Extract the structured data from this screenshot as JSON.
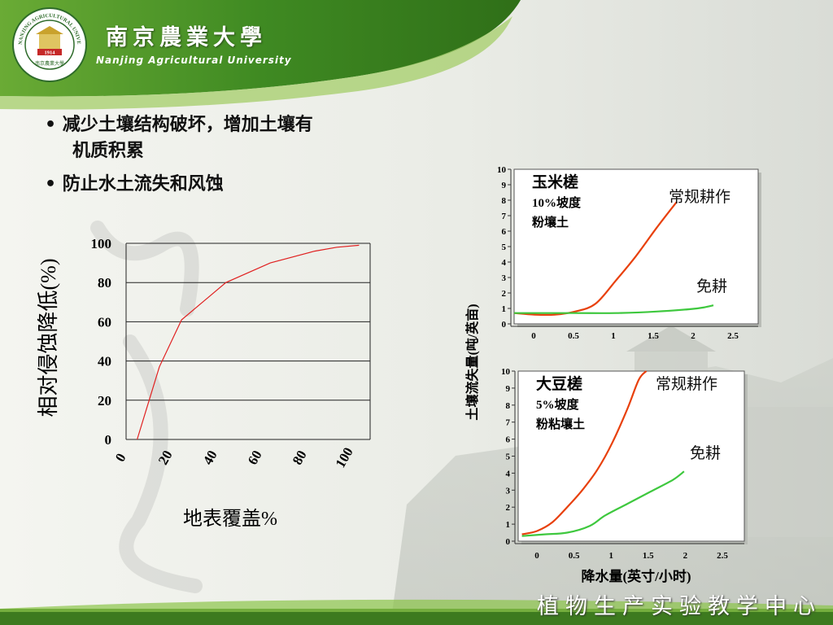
{
  "header": {
    "university_cn": "南京農業大學",
    "university_en": "Nanjing Agricultural University",
    "logo_text": "NANJING AGRICULTURAL UNIVERSITY",
    "logo_year": "1914",
    "logo_motto": "南京農業大學"
  },
  "bullets": [
    {
      "line1": "• 减少土壤结构破坏，增加土壤有",
      "line2": "机质积累"
    },
    {
      "line1": "• 防止水土流失和风蚀",
      "line2": ""
    }
  ],
  "footer": {
    "text": "植物生产实验教学中心"
  },
  "colors": {
    "green_dark": "#3d7a1f",
    "green_light": "#8cc44a",
    "red_line": "#e8400c",
    "green_line": "#3ec83e",
    "left_line": "#e02020"
  },
  "chart_data": [
    {
      "type": "line",
      "title": "",
      "xlabel": "地表覆盖%",
      "ylabel": "相对侵蚀降低(%)",
      "x_ticks": [
        "0",
        "20",
        "40",
        "60",
        "80",
        "100"
      ],
      "y_ticks": [
        "0",
        "20",
        "40",
        "60",
        "80",
        "100"
      ],
      "xlim": [
        0,
        110
      ],
      "ylim": [
        0,
        100
      ],
      "grid": true,
      "series": [
        {
          "name": "",
          "x": [
            5,
            15,
            25,
            45,
            65,
            85,
            95,
            105
          ],
          "y": [
            0,
            37,
            61,
            80,
            90,
            96,
            98,
            99
          ]
        }
      ]
    },
    {
      "type": "line",
      "title": "玉米槎",
      "subtitle": [
        "10%坡度",
        "粉壤土"
      ],
      "xlabel": "",
      "ylabel": "",
      "x_ticks": [
        "0",
        "0.5",
        "1",
        "1.5",
        "2",
        "2.5"
      ],
      "y_ticks": [
        "0",
        "1",
        "2",
        "3",
        "4",
        "5",
        "6",
        "7",
        "8",
        "9",
        "10"
      ],
      "xlim": [
        -0.25,
        2.75
      ],
      "ylim": [
        0,
        10
      ],
      "series": [
        {
          "name": "常规耕作",
          "x": [
            -0.25,
            0,
            0.25,
            0.5,
            0.75,
            1.0,
            1.25,
            1.5,
            1.75
          ],
          "y": [
            0.7,
            0.6,
            0.6,
            0.8,
            1.3,
            2.8,
            4.4,
            6.2,
            7.9
          ]
        },
        {
          "name": "免耕",
          "x": [
            -0.25,
            0,
            0.5,
            1.0,
            1.5,
            2.0,
            2.2
          ],
          "y": [
            0.7,
            0.7,
            0.7,
            0.7,
            0.8,
            1.0,
            1.2
          ]
        }
      ]
    },
    {
      "type": "line",
      "title": "大豆槎",
      "subtitle": [
        "5%坡度",
        "粉粘壤土"
      ],
      "xlabel": "降水量(英寸/小时)",
      "ylabel": "",
      "x_ticks": [
        "0",
        "0.5",
        "1",
        "1.5",
        "2",
        "2.5"
      ],
      "y_ticks": [
        "0",
        "1",
        "2",
        "3",
        "4",
        "5",
        "6",
        "7",
        "8",
        "9",
        "10"
      ],
      "xlim": [
        -0.15,
        2.85
      ],
      "ylim": [
        0,
        10
      ],
      "series": [
        {
          "name": "常规耕作",
          "x": [
            -0.1,
            0.1,
            0.3,
            0.5,
            0.7,
            0.9,
            1.1,
            1.3,
            1.45,
            1.55
          ],
          "y": [
            0.4,
            0.6,
            1.1,
            2.0,
            3.0,
            4.2,
            5.8,
            7.8,
            9.5,
            10.0
          ]
        },
        {
          "name": "免耕",
          "x": [
            -0.1,
            0.2,
            0.5,
            0.8,
            1.0,
            1.3,
            1.6,
            1.9,
            2.05
          ],
          "y": [
            0.3,
            0.4,
            0.5,
            0.9,
            1.5,
            2.2,
            2.9,
            3.6,
            4.1
          ]
        }
      ]
    }
  ],
  "shared_ylabel": "土壤流失量(吨/英亩)"
}
